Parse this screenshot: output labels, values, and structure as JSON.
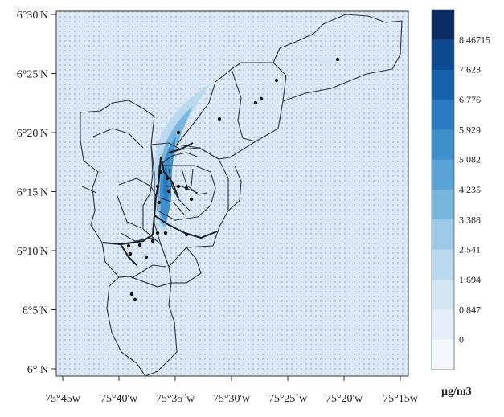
{
  "map": {
    "latitude_labels": [
      "6°30'N",
      "6°25'N",
      "6°20'N",
      "6°15'N",
      "6°10'N",
      "6°5'N",
      "6° N"
    ],
    "longitude_labels": [
      "75°45w",
      "75°40'w",
      "75°35´w",
      "75°30'w",
      "75°25´w",
      "75°20'w",
      "75°15w"
    ],
    "colorbar": {
      "levels": [
        "8.46715",
        "7.623",
        "6.776",
        "5.929",
        "5.082",
        "4.235",
        "3.388",
        "2.541",
        "1.694",
        "0.847",
        "0"
      ],
      "colors": [
        "#0b2d63",
        "#0e4a8f",
        "#1763aa",
        "#2a7bbf",
        "#3f8fcc",
        "#5aa3d6",
        "#7ab7df",
        "#9ecae8",
        "#bad8ee",
        "#d4e5f4",
        "#e6eef9",
        "#f4f8fd"
      ],
      "unit": "µg/m3"
    }
  }
}
